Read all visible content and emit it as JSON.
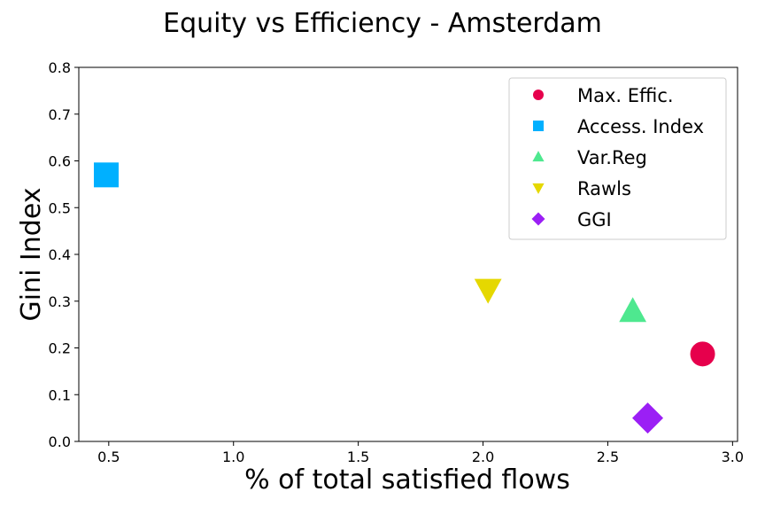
{
  "chart_data": {
    "type": "scatter",
    "title": "Equity vs Efficiency - Amsterdam",
    "xlabel": "% of total satisfied flows",
    "ylabel": "Gini Index",
    "xlim": [
      0.38,
      3.02
    ],
    "ylim": [
      0.0,
      0.8
    ],
    "xticks": [
      "0.5",
      "1.0",
      "1.5",
      "2.0",
      "2.5",
      "3.0"
    ],
    "yticks": [
      "0.0",
      "0.1",
      "0.2",
      "0.3",
      "0.4",
      "0.5",
      "0.6",
      "0.7",
      "0.8"
    ],
    "grid": false,
    "legend_position": "top-right",
    "series": [
      {
        "name": "Max. Effic.",
        "marker": "circle",
        "color": "#e6004c",
        "x": 2.88,
        "y": 0.187
      },
      {
        "name": "Access. Index",
        "marker": "square",
        "color": "#00b0ff",
        "x": 0.49,
        "y": 0.57
      },
      {
        "name": "Var.Reg",
        "marker": "triangle-up",
        "color": "#4ee88f",
        "x": 2.6,
        "y": 0.278
      },
      {
        "name": "Rawls",
        "marker": "triangle-down",
        "color": "#e5d800",
        "x": 2.02,
        "y": 0.325
      },
      {
        "name": "GGI",
        "marker": "diamond",
        "color": "#9b1ff5",
        "x": 2.66,
        "y": 0.05
      }
    ]
  }
}
